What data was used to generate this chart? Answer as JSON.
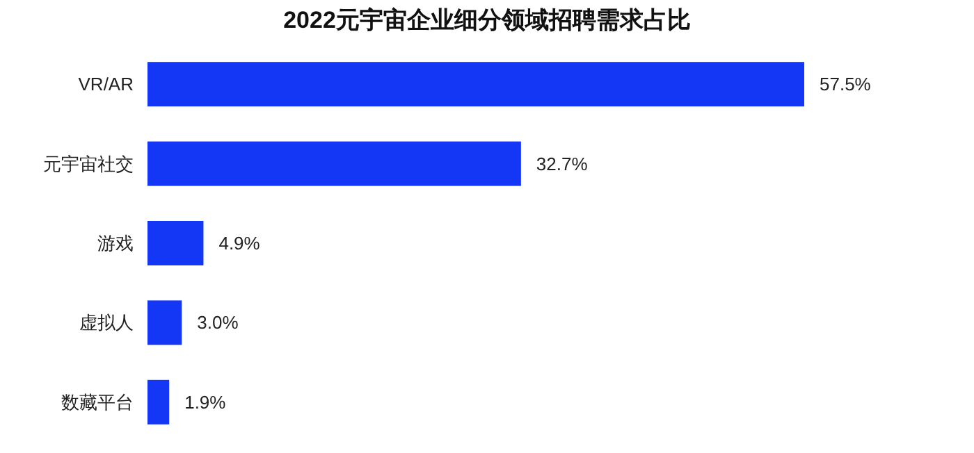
{
  "chart_data": {
    "type": "bar",
    "orientation": "horizontal",
    "title": "2022元宇宙企业细分领域招聘需求占比",
    "categories": [
      "VR/AR",
      "元宇宙社交",
      "游戏",
      "虚拟人",
      "数藏平台"
    ],
    "values": [
      57.5,
      32.7,
      4.9,
      3.0,
      1.9
    ],
    "color": "#1436f5",
    "value_labels": [
      "57.5%",
      "32.7%",
      "4.9%",
      "3.0%",
      "1.9%"
    ]
  }
}
